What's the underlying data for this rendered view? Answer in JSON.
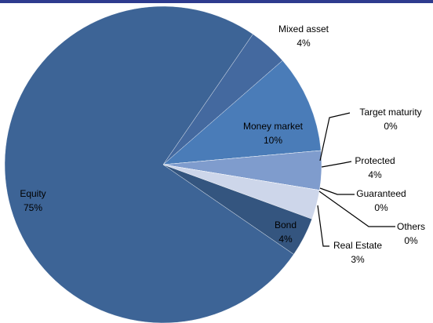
{
  "chart_data": {
    "type": "pie",
    "categories": [
      "Mixed asset",
      "Money market",
      "Target maturity",
      "Protected",
      "Guaranteed",
      "Others",
      "Real Estate",
      "Bond",
      "Equity"
    ],
    "values": [
      4,
      10,
      0,
      4,
      0,
      0,
      3,
      4,
      75
    ],
    "value_labels": [
      "4%",
      "10%",
      "0%",
      "4%",
      "0%",
      "0%",
      "3%",
      "4%",
      "75%"
    ],
    "colors": [
      "#44699f",
      "#4a7cb8",
      "#6a8cc4",
      "#7f9ccd",
      "#a3b5d9",
      "#b8c6e2",
      "#cdd6ea",
      "#34557f",
      "#3d6496"
    ]
  }
}
